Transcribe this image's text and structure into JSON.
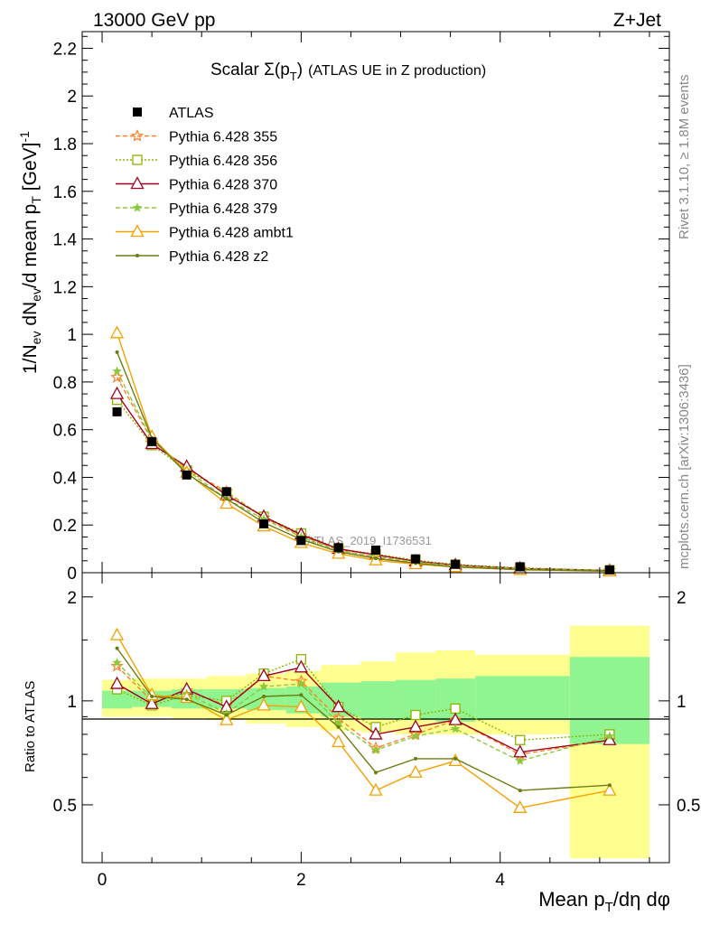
{
  "header": {
    "left": "13000 GeV pp",
    "right": "Z+Jet"
  },
  "side_labels": {
    "rivet": "Rivet 3.1.10, ≥ 1.8M events",
    "mcplots": "mcplots.cern.ch [arXiv:1306:3436]"
  },
  "chart_data": [
    {
      "type": "line",
      "title": "Scalar Σ(p_T) (ATLAS UE in Z production)",
      "title_main": "Scalar ",
      "title_sigma": "Σ(p",
      "title_sub": "T",
      "title_close": ")",
      "title_rest": "(ATLAS UE in Z production)",
      "ylabel": "1/N_ev dN_ev/d mean p_T [GeV]^-1",
      "ylabel_parts": {
        "a": "1/N",
        "a_sub": "ev",
        "b": " dN",
        "b_sub": "ev",
        "c": "/d mean p",
        "c_sub": "T",
        "d": " [GeV]",
        "d_sup": "-1"
      },
      "watermark": "ATLAS_2019_I1736531",
      "ylim": [
        0,
        2.27
      ],
      "xlim": [
        -0.2,
        5.7
      ],
      "yticks": [
        "0",
        "0.2",
        "0.4",
        "0.6",
        "0.8",
        "1",
        "1.2",
        "1.4",
        "1.6",
        "1.8",
        "2",
        "2.2"
      ],
      "x": [
        0.15,
        0.5,
        0.85,
        1.25,
        1.625,
        2.0,
        2.375,
        2.75,
        3.15,
        3.55,
        4.2,
        5.1
      ],
      "data": {
        "name": "ATLAS",
        "values": [
          0.675,
          0.55,
          0.41,
          0.34,
          0.205,
          0.135,
          0.105,
          0.095,
          0.058,
          0.035,
          0.025,
          0.012
        ]
      },
      "series": [
        {
          "name": "Pythia 6.428 355",
          "color": "#ff7f2a",
          "dash": "5,3",
          "marker": "star",
          "values": [
            0.82,
            0.555,
            0.435,
            0.34,
            0.23,
            0.155,
            0.095,
            0.065,
            0.04,
            0.03,
            0.018,
            0.01
          ]
        },
        {
          "name": "Pythia 6.428 356",
          "color": "#8cb400",
          "dash": "2,2",
          "marker": "open-square",
          "values": [
            0.725,
            0.535,
            0.43,
            0.335,
            0.235,
            0.165,
            0.1,
            0.078,
            0.053,
            0.034,
            0.02,
            0.01
          ]
        },
        {
          "name": "Pythia 6.428 370",
          "color": "#a0001e",
          "dash": "",
          "marker": "open-triangle",
          "values": [
            0.75,
            0.54,
            0.445,
            0.325,
            0.235,
            0.16,
            0.1,
            0.075,
            0.048,
            0.032,
            0.018,
            0.009
          ]
        },
        {
          "name": "Pythia 6.428 379",
          "color": "#8cc83c",
          "dash": "5,3",
          "marker": "small-star",
          "values": [
            0.845,
            0.56,
            0.43,
            0.31,
            0.225,
            0.15,
            0.092,
            0.068,
            0.045,
            0.029,
            0.017,
            0.009
          ]
        },
        {
          "name": "Pythia 6.428 ambt1",
          "color": "#f5a000",
          "dash": "",
          "marker": "open-triangle",
          "values": [
            1.005,
            0.57,
            0.42,
            0.29,
            0.195,
            0.125,
            0.08,
            0.052,
            0.036,
            0.024,
            0.012,
            0.006
          ]
        },
        {
          "name": "Pythia 6.428 z2",
          "color": "#6b7d10",
          "dash": "",
          "marker": "dot",
          "values": [
            0.925,
            0.565,
            0.415,
            0.31,
            0.21,
            0.14,
            0.088,
            0.06,
            0.04,
            0.024,
            0.013,
            0.007
          ]
        }
      ]
    },
    {
      "type": "line",
      "ylabel": "Ratio to ATLAS",
      "xlabel": "Mean p_T/dη dφ",
      "xlabel_parts": {
        "a": "Mean p",
        "a_sub": "T",
        "b": "/dη dφ"
      },
      "ylim": [
        0.34,
        2.35
      ],
      "xlim": [
        -0.2,
        5.7
      ],
      "xticks": [
        "0",
        "2",
        "4"
      ],
      "yticks_left": [
        "0.5",
        "1",
        "2"
      ],
      "yticks_right": [
        "0.5",
        "1",
        "2"
      ],
      "bins": [
        [
          0,
          0.3
        ],
        [
          0.3,
          0.7
        ],
        [
          0.7,
          1.05
        ],
        [
          1.05,
          1.45
        ],
        [
          1.45,
          1.85
        ],
        [
          1.85,
          2.2
        ],
        [
          2.2,
          2.6
        ],
        [
          2.6,
          2.95
        ],
        [
          2.95,
          3.35
        ],
        [
          3.35,
          3.75
        ],
        [
          3.75,
          4.7
        ],
        [
          4.7,
          5.5
        ]
      ],
      "band_stat": [
        [
          0.95,
          1.07
        ],
        [
          0.96,
          1.07
        ],
        [
          0.95,
          1.08
        ],
        [
          0.95,
          1.08
        ],
        [
          0.94,
          1.09
        ],
        [
          0.92,
          1.1
        ],
        [
          0.9,
          1.13
        ],
        [
          0.89,
          1.14
        ],
        [
          0.88,
          1.15
        ],
        [
          0.87,
          1.16
        ],
        [
          0.88,
          1.18
        ],
        [
          0.75,
          1.34
        ]
      ],
      "band_total": [
        [
          0.9,
          1.15
        ],
        [
          0.9,
          1.16
        ],
        [
          0.89,
          1.16
        ],
        [
          0.88,
          1.18
        ],
        [
          0.86,
          1.2
        ],
        [
          0.84,
          1.22
        ],
        [
          0.82,
          1.27
        ],
        [
          0.81,
          1.3
        ],
        [
          0.8,
          1.38
        ],
        [
          0.8,
          1.4
        ],
        [
          0.8,
          1.36
        ],
        [
          0.35,
          1.65
        ]
      ],
      "series": [
        {
          "name": "Pythia 6.428 355",
          "values": [
            1.26,
            1.0,
            1.07,
            0.97,
            1.18,
            1.14,
            0.89,
            0.73,
            0.8,
            0.88,
            0.7,
            0.77
          ]
        },
        {
          "name": "Pythia 6.428 356",
          "values": [
            1.08,
            0.97,
            1.04,
            1.0,
            1.2,
            1.32,
            0.96,
            0.84,
            0.91,
            0.95,
            0.77,
            0.8
          ]
        },
        {
          "name": "Pythia 6.428 370",
          "values": [
            1.12,
            0.98,
            1.08,
            0.96,
            1.18,
            1.25,
            0.96,
            0.8,
            0.84,
            0.88,
            0.71,
            0.77
          ]
        },
        {
          "name": "Pythia 6.428 379",
          "values": [
            1.29,
            1.02,
            1.05,
            0.92,
            1.1,
            1.12,
            0.86,
            0.72,
            0.79,
            0.83,
            0.67,
            0.79
          ]
        },
        {
          "name": "Pythia 6.428 ambt1",
          "values": [
            1.55,
            1.04,
            1.02,
            0.88,
            0.97,
            0.96,
            0.76,
            0.55,
            0.62,
            0.67,
            0.49,
            0.55
          ]
        },
        {
          "name": "Pythia 6.428 z2",
          "values": [
            1.42,
            1.03,
            1.01,
            0.91,
            1.03,
            1.04,
            0.84,
            0.62,
            0.68,
            0.68,
            0.55,
            0.57
          ]
        }
      ]
    }
  ]
}
